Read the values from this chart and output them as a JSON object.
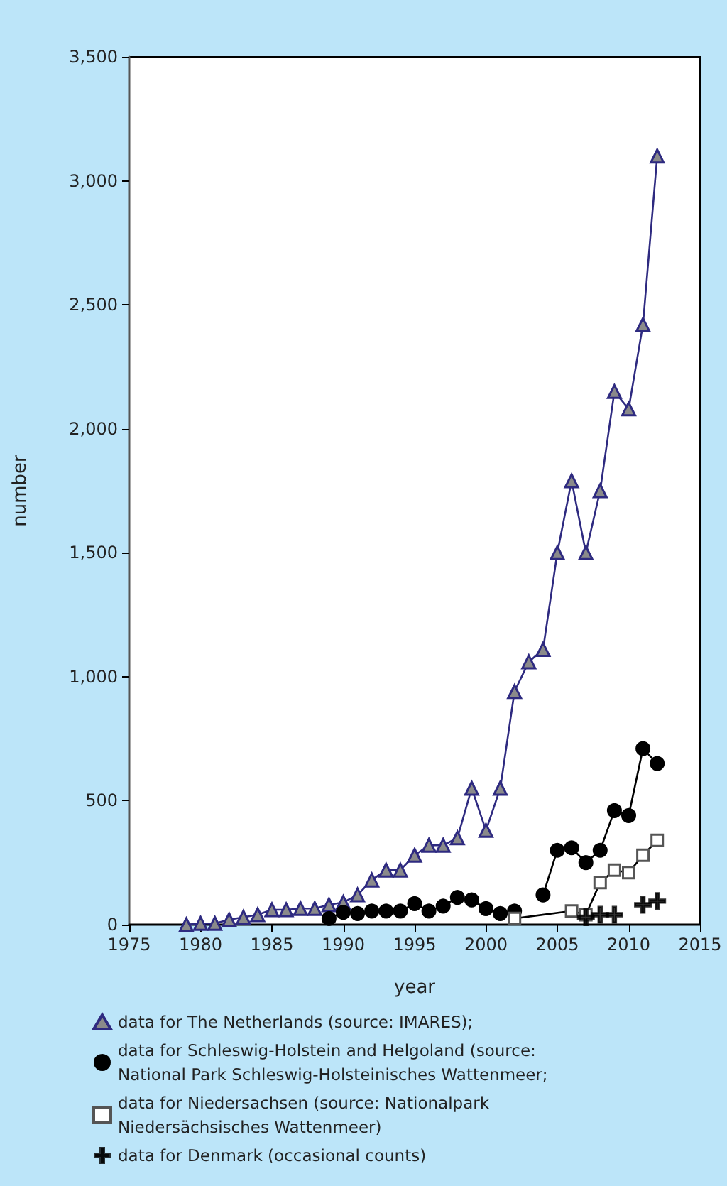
{
  "chart_data": {
    "type": "line",
    "xlabel": "year",
    "ylabel": "number",
    "xlim": [
      1975,
      2015
    ],
    "xticks": [
      1975,
      1980,
      1985,
      1990,
      1995,
      2000,
      2005,
      2010,
      2015
    ],
    "ylim": [
      0,
      3500
    ],
    "yticks": [
      0,
      500,
      {
        "value": 1000,
        "label": "1,000"
      },
      {
        "value": 1500,
        "label": "1,500"
      },
      {
        "value": 2000,
        "label": "2,000"
      },
      {
        "value": 2500,
        "label": "2,500"
      },
      {
        "value": 3000,
        "label": "3,000"
      },
      {
        "value": 3500,
        "label": "3,500"
      }
    ],
    "grid": false,
    "legend": "bottom",
    "series": [
      {
        "name": "data for The Netherlands (source: IMARES);",
        "color": "#2e2a80",
        "marker": "triangle",
        "x": [
          1979,
          1980,
          1981,
          1982,
          1983,
          1984,
          1985,
          1986,
          1987,
          1988,
          1989,
          1990,
          1991,
          1992,
          1993,
          1994,
          1995,
          1996,
          1997,
          1998,
          1999,
          2000,
          2001,
          2002,
          2003,
          2004,
          2005,
          2006,
          2007,
          2008,
          2009,
          2010,
          2011,
          2012
        ],
        "values": [
          0,
          5,
          5,
          20,
          30,
          40,
          60,
          60,
          65,
          65,
          80,
          90,
          120,
          180,
          220,
          220,
          280,
          320,
          320,
          350,
          550,
          380,
          550,
          940,
          1060,
          1110,
          1500,
          1790,
          1500,
          1750,
          2150,
          2080,
          2420,
          3100
        ]
      },
      {
        "name": "data for Schleswig-Holstein and Helgoland (source: National Park Schleswig-Holsteinisches Wattenmeer;",
        "color": "#000000",
        "marker": "circle",
        "x": [
          1989,
          1990,
          1991,
          1992,
          1993,
          1994,
          1995,
          1996,
          1997,
          1998,
          1999,
          2000,
          2001,
          2002,
          2003,
          2004,
          2005,
          2006,
          2007,
          2008,
          2009,
          2010,
          2011,
          2012
        ],
        "values": [
          25,
          50,
          45,
          55,
          55,
          55,
          85,
          55,
          75,
          110,
          100,
          65,
          45,
          55,
          null,
          120,
          300,
          310,
          250,
          300,
          460,
          440,
          710,
          650
        ]
      },
      {
        "name": "data for Niedersachsen (source: Nationalpark Niedersächsisches Wattenmeer)",
        "color": "#000000",
        "marker": "square",
        "x": [
          2002,
          2006,
          2007,
          2008,
          2009,
          2010,
          2011,
          2012
        ],
        "values": [
          25,
          55,
          40,
          170,
          220,
          210,
          280,
          340
        ]
      },
      {
        "name": "data for Denmark (occasional counts)",
        "type": "scatter",
        "color": "#000000",
        "marker": "cross",
        "x": [
          2007,
          2008,
          2009,
          2011,
          2012
        ],
        "values": [
          30,
          40,
          40,
          80,
          95
        ]
      }
    ]
  }
}
